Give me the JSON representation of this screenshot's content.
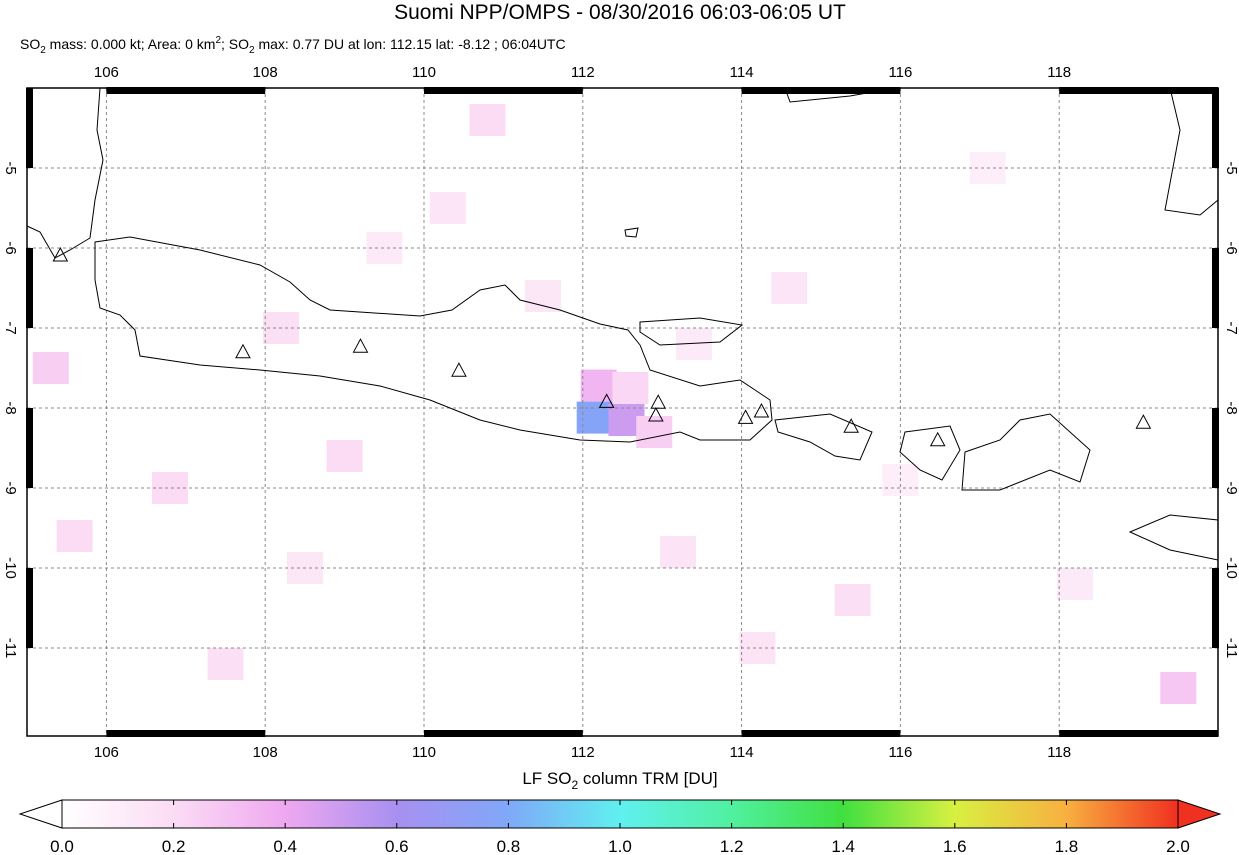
{
  "title": "Suomi NPP/OMPS - 08/30/2016 06:03-06:05 UT",
  "subtitle_parts": [
    "SO",
    "2",
    " mass: 0.000 kt; Area: 0 km",
    "2",
    "; SO",
    "2",
    " max: 0.77 DU at lon: 112.15 lat: -8.12 ; 06:04UTC"
  ],
  "map": {
    "xlim": [
      105,
      120
    ],
    "ylim": [
      -12.1,
      -4
    ],
    "xticks": [
      106,
      108,
      110,
      112,
      114,
      116,
      118
    ],
    "yticks": [
      -5,
      -6,
      -7,
      -8,
      -9,
      -10,
      -11
    ],
    "grid": true,
    "volcanoes": {
      "lon": [
        105.42,
        107.72,
        109.2,
        110.44,
        112.3,
        112.95,
        112.92,
        114.05,
        114.25,
        115.38,
        116.47,
        119.06
      ],
      "lat": [
        -6.1,
        -7.31,
        -7.24,
        -7.54,
        -7.93,
        -7.94,
        -8.1,
        -8.13,
        -8.05,
        -8.24,
        -8.41,
        -8.19
      ]
    },
    "pixels": {
      "lon": [
        112.15,
        112.55,
        112.2,
        112.6,
        112.9,
        110.3,
        109.5,
        108.2,
        106.8,
        105.3,
        110.8,
        113.2,
        114.6,
        115.4,
        117.1,
        119.5,
        107.5,
        109.0,
        111.5,
        113.4,
        116.0,
        118.2,
        105.6,
        108.5,
        114.2
      ],
      "lat": [
        -8.12,
        -8.15,
        -7.72,
        -7.75,
        -8.3,
        -5.5,
        -6.0,
        -7.0,
        -9.0,
        -7.5,
        -4.4,
        -9.8,
        -6.5,
        -10.4,
        -5.0,
        -11.5,
        -11.2,
        -8.6,
        -6.6,
        -7.2,
        -8.9,
        -10.2,
        -9.6,
        -10.0,
        -11.0
      ],
      "values": [
        0.77,
        0.5,
        0.35,
        0.22,
        0.25,
        0.15,
        0.12,
        0.18,
        0.2,
        0.25,
        0.2,
        0.16,
        0.15,
        0.18,
        0.1,
        0.28,
        0.18,
        0.2,
        0.14,
        0.12,
        0.1,
        0.12,
        0.2,
        0.14,
        0.16
      ]
    }
  },
  "colorbar": {
    "label_parts": [
      "LF SO",
      "2",
      " column TRM [DU]"
    ],
    "lim": [
      0,
      2
    ],
    "ticks": [
      {
        "value": 0,
        "label": "0.0"
      },
      {
        "value": 0.2,
        "label": "0.2"
      },
      {
        "value": 0.4,
        "label": "0.4"
      },
      {
        "value": 0.6,
        "label": "0.6"
      },
      {
        "value": 0.8,
        "label": "0.8"
      },
      {
        "value": 1.0,
        "label": "1.0"
      },
      {
        "value": 1.2,
        "label": "1.2"
      },
      {
        "value": 1.4,
        "label": "1.4"
      },
      {
        "value": 1.6,
        "label": "1.6"
      },
      {
        "value": 1.8,
        "label": "1.8"
      },
      {
        "value": 2.0,
        "label": "2.0"
      }
    ],
    "colors": [
      "#ffffff",
      "#fbdcf4",
      "#eea8f0",
      "#a890f0",
      "#80a8f8",
      "#60f0f0",
      "#50f0a0",
      "#40e040",
      "#d8f040",
      "#f8b040",
      "#f03020"
    ]
  }
}
